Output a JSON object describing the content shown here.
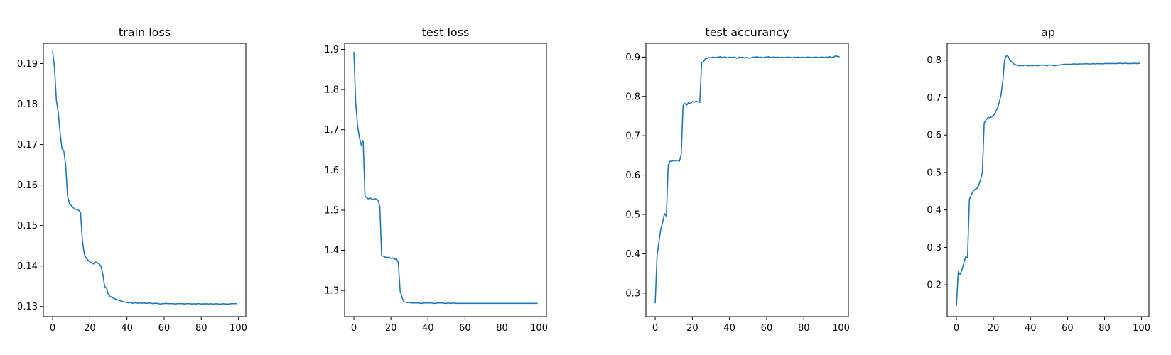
{
  "figure": {
    "background": "#ffffff",
    "line_color": "#1f77b4"
  },
  "chart_data": [
    {
      "type": "line",
      "title": "train loss",
      "xlabel": "",
      "ylabel": "",
      "xlim": [
        -5,
        104
      ],
      "ylim": [
        0.1275,
        0.195
      ],
      "xticks": [
        0,
        20,
        40,
        60,
        80,
        100
      ],
      "yticks": [
        0.13,
        0.14,
        0.15,
        0.16,
        0.17,
        0.18,
        0.19
      ],
      "tick_labels_x": [
        "0",
        "20",
        "40",
        "60",
        "80",
        "100"
      ],
      "tick_labels_y": [
        "0.13",
        "0.14",
        "0.15",
        "0.16",
        "0.17",
        "0.18",
        "0.19"
      ],
      "grid": false,
      "series": [
        {
          "values": [
            0.193,
            0.189,
            0.181,
            0.178,
            0.173,
            0.169,
            0.1685,
            0.165,
            0.1575,
            0.1555,
            0.155,
            0.1545,
            0.154,
            0.154,
            0.1538,
            0.1533,
            0.1465,
            0.143,
            0.142,
            0.1415,
            0.141,
            0.1408,
            0.1405,
            0.141,
            0.1408,
            0.1405,
            0.14,
            0.138,
            0.135,
            0.1345,
            0.133,
            0.1325,
            0.1322,
            0.132,
            0.1318,
            0.1316,
            0.1315,
            0.1313,
            0.1312,
            0.1311,
            0.131,
            0.1309,
            0.131,
            0.1308,
            0.1309,
            0.1309,
            0.1308,
            0.1309,
            0.1308,
            0.1309,
            0.1308,
            0.1308,
            0.1309,
            0.1308,
            0.1307,
            0.1308,
            0.1308,
            0.1307,
            0.1306,
            0.1307,
            0.1307,
            0.1308,
            0.1307,
            0.1307,
            0.1307,
            0.1307,
            0.1306,
            0.1307,
            0.1307,
            0.1307,
            0.1307,
            0.1306,
            0.1307,
            0.1307,
            0.1307,
            0.1306,
            0.1307,
            0.1306,
            0.1307,
            0.1307,
            0.1306,
            0.1307,
            0.1306,
            0.1307,
            0.1306,
            0.1307,
            0.1306,
            0.1306,
            0.1307,
            0.1306,
            0.1306,
            0.1306,
            0.1307,
            0.1306,
            0.1306,
            0.1306,
            0.1307,
            0.1307,
            0.1307,
            0.1307
          ]
        }
      ]
    },
    {
      "type": "line",
      "title": "test loss",
      "xlabel": "",
      "ylabel": "",
      "xlim": [
        -5,
        104
      ],
      "ylim": [
        1.235,
        1.915
      ],
      "xticks": [
        0,
        20,
        40,
        60,
        80,
        100
      ],
      "yticks": [
        1.3,
        1.4,
        1.5,
        1.6,
        1.7,
        1.8,
        1.9
      ],
      "tick_labels_x": [
        "0",
        "20",
        "40",
        "60",
        "80",
        "100"
      ],
      "tick_labels_y": [
        "1.3",
        "1.4",
        "1.5",
        "1.6",
        "1.7",
        "1.8",
        "1.9"
      ],
      "grid": false,
      "series": [
        {
          "values": [
            1.893,
            1.765,
            1.71,
            1.68,
            1.662,
            1.673,
            1.535,
            1.53,
            1.528,
            1.53,
            1.526,
            1.528,
            1.528,
            1.525,
            1.51,
            1.387,
            1.385,
            1.383,
            1.382,
            1.383,
            1.38,
            1.381,
            1.378,
            1.379,
            1.369,
            1.298,
            1.283,
            1.272,
            1.271,
            1.27,
            1.27,
            1.269,
            1.269,
            1.269,
            1.269,
            1.269,
            1.268,
            1.268,
            1.269,
            1.269,
            1.269,
            1.269,
            1.269,
            1.268,
            1.268,
            1.269,
            1.269,
            1.269,
            1.269,
            1.268,
            1.268,
            1.269,
            1.268,
            1.268,
            1.269,
            1.268,
            1.268,
            1.268,
            1.268,
            1.268,
            1.268,
            1.268,
            1.268,
            1.268,
            1.268,
            1.268,
            1.268,
            1.268,
            1.268,
            1.268,
            1.268,
            1.268,
            1.268,
            1.268,
            1.268,
            1.268,
            1.268,
            1.268,
            1.268,
            1.268,
            1.268,
            1.268,
            1.268,
            1.268,
            1.268,
            1.268,
            1.268,
            1.268,
            1.268,
            1.268,
            1.268,
            1.268,
            1.268,
            1.268,
            1.268,
            1.268,
            1.268,
            1.268,
            1.268,
            1.268
          ]
        }
      ]
    },
    {
      "type": "line",
      "title": "test accurancy",
      "xlabel": "",
      "ylabel": "",
      "xlim": [
        -5,
        104
      ],
      "ylim": [
        0.24,
        0.935
      ],
      "xticks": [
        0,
        20,
        40,
        60,
        80,
        100
      ],
      "yticks": [
        0.3,
        0.4,
        0.5,
        0.6,
        0.7,
        0.8,
        0.9
      ],
      "tick_labels_x": [
        "0",
        "20",
        "40",
        "60",
        "80",
        "100"
      ],
      "tick_labels_y": [
        "0.3",
        "0.4",
        "0.5",
        "0.6",
        "0.7",
        "0.8",
        "0.9"
      ],
      "grid": false,
      "series": [
        {
          "values": [
            0.275,
            0.395,
            0.43,
            0.462,
            0.48,
            0.502,
            0.495,
            0.625,
            0.635,
            0.635,
            0.638,
            0.636,
            0.638,
            0.635,
            0.652,
            0.777,
            0.782,
            0.778,
            0.785,
            0.781,
            0.787,
            0.785,
            0.788,
            0.786,
            0.785,
            0.886,
            0.888,
            0.896,
            0.897,
            0.899,
            0.898,
            0.9,
            0.899,
            0.899,
            0.9,
            0.901,
            0.899,
            0.9,
            0.9,
            0.898,
            0.9,
            0.899,
            0.9,
            0.899,
            0.897,
            0.9,
            0.899,
            0.9,
            0.898,
            0.899,
            0.898,
            0.897,
            0.899,
            0.9,
            0.9,
            0.901,
            0.899,
            0.9,
            0.898,
            0.9,
            0.9,
            0.901,
            0.899,
            0.9,
            0.9,
            0.899,
            0.9,
            0.898,
            0.9,
            0.899,
            0.899,
            0.9,
            0.9,
            0.899,
            0.898,
            0.9,
            0.899,
            0.9,
            0.899,
            0.9,
            0.899,
            0.899,
            0.9,
            0.9,
            0.899,
            0.899,
            0.9,
            0.9,
            0.898,
            0.9,
            0.9,
            0.899,
            0.9,
            0.9,
            0.901,
            0.899,
            0.9,
            0.903,
            0.902,
            0.901
          ]
        }
      ]
    },
    {
      "type": "line",
      "title": "ap",
      "xlabel": "",
      "ylabel": "",
      "xlim": [
        -5,
        104
      ],
      "ylim": [
        0.115,
        0.845
      ],
      "xticks": [
        0,
        20,
        40,
        60,
        80,
        100
      ],
      "yticks": [
        0.2,
        0.3,
        0.4,
        0.5,
        0.6,
        0.7,
        0.8
      ],
      "tick_labels_x": [
        "0",
        "20",
        "40",
        "60",
        "80",
        "100"
      ],
      "tick_labels_y": [
        "0.2",
        "0.3",
        "0.4",
        "0.5",
        "0.6",
        "0.7",
        "0.8"
      ],
      "grid": false,
      "series": [
        {
          "values": [
            0.145,
            0.235,
            0.228,
            0.24,
            0.258,
            0.275,
            0.272,
            0.428,
            0.44,
            0.45,
            0.455,
            0.457,
            0.465,
            0.48,
            0.5,
            0.632,
            0.64,
            0.646,
            0.647,
            0.648,
            0.651,
            0.66,
            0.67,
            0.685,
            0.705,
            0.74,
            0.8,
            0.812,
            0.81,
            0.8,
            0.795,
            0.79,
            0.788,
            0.786,
            0.785,
            0.786,
            0.785,
            0.787,
            0.786,
            0.785,
            0.786,
            0.785,
            0.786,
            0.786,
            0.785,
            0.786,
            0.787,
            0.787,
            0.786,
            0.785,
            0.787,
            0.787,
            0.786,
            0.785,
            0.786,
            0.787,
            0.787,
            0.788,
            0.789,
            0.789,
            0.789,
            0.789,
            0.789,
            0.79,
            0.79,
            0.789,
            0.79,
            0.79,
            0.79,
            0.79,
            0.791,
            0.79,
            0.79,
            0.79,
            0.791,
            0.79,
            0.791,
            0.79,
            0.791,
            0.79,
            0.791,
            0.791,
            0.791,
            0.791,
            0.791,
            0.791,
            0.791,
            0.791,
            0.792,
            0.791,
            0.791,
            0.792,
            0.791,
            0.791,
            0.791,
            0.791,
            0.792,
            0.791,
            0.791,
            0.792
          ]
        }
      ]
    }
  ]
}
